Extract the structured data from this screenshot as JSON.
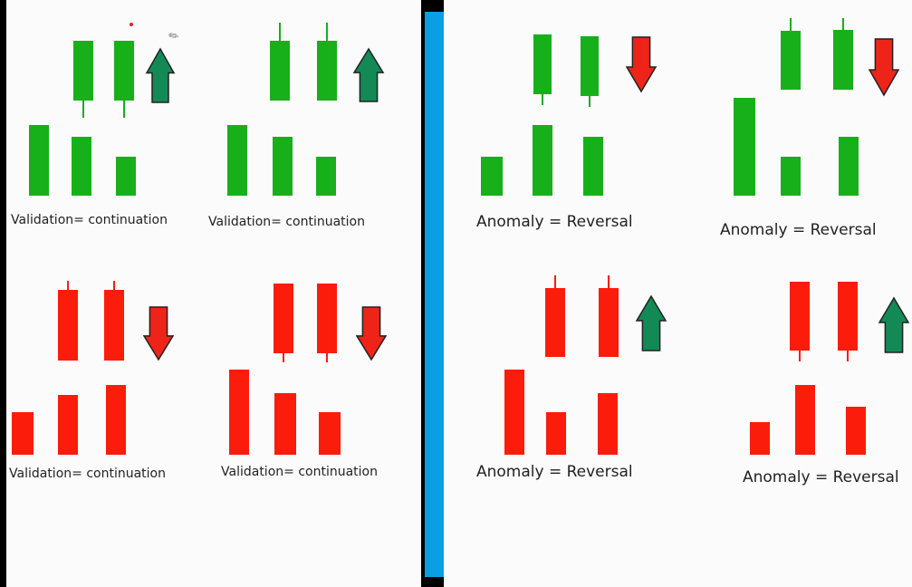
{
  "colors": {
    "green_candle": "#17b01b",
    "red_candle": "#fc1c0b",
    "green_arrow": "#138a55",
    "red_arrow": "#ee2418",
    "divider": "#0a9ee3",
    "arrow_outline": "#222222"
  },
  "diagrams": [
    {
      "caption": "Validation= continuation",
      "candle_color": "green",
      "arrow": {
        "direction": "up",
        "color": "green"
      },
      "candles": [
        {
          "label": "base-1",
          "wick": false
        },
        {
          "label": "base-2",
          "wick": false
        },
        {
          "label": "base-3",
          "wick": false
        },
        {
          "label": "signal-1",
          "wick": true
        },
        {
          "label": "signal-2",
          "wick": true
        }
      ]
    },
    {
      "caption": "Validation= continuation",
      "candle_color": "green",
      "arrow": {
        "direction": "up",
        "color": "green"
      },
      "candles": [
        {
          "label": "base-1",
          "wick": false
        },
        {
          "label": "base-2",
          "wick": false
        },
        {
          "label": "base-3",
          "wick": false
        },
        {
          "label": "signal-1",
          "wick": true
        },
        {
          "label": "signal-2",
          "wick": true
        }
      ]
    },
    {
      "caption": "Validation= continuation",
      "candle_color": "red",
      "arrow": {
        "direction": "down",
        "color": "red"
      },
      "candles": [
        {
          "label": "base-1",
          "wick": false
        },
        {
          "label": "base-2",
          "wick": false
        },
        {
          "label": "base-3",
          "wick": false
        },
        {
          "label": "signal-1",
          "wick": true
        },
        {
          "label": "signal-2",
          "wick": true
        }
      ]
    },
    {
      "caption": "Validation= continuation",
      "candle_color": "red",
      "arrow": {
        "direction": "down",
        "color": "red"
      },
      "candles": [
        {
          "label": "base-1",
          "wick": false
        },
        {
          "label": "base-2",
          "wick": false
        },
        {
          "label": "base-3",
          "wick": false
        },
        {
          "label": "signal-1",
          "wick": true
        },
        {
          "label": "signal-2",
          "wick": true
        }
      ]
    },
    {
      "caption": "Anomaly = Reversal",
      "candle_color": "green",
      "arrow": {
        "direction": "down",
        "color": "red"
      },
      "candles": [
        {
          "label": "base-1",
          "wick": false
        },
        {
          "label": "base-2",
          "wick": false
        },
        {
          "label": "base-3",
          "wick": false
        },
        {
          "label": "signal-1",
          "wick": true
        },
        {
          "label": "signal-2",
          "wick": true
        }
      ]
    },
    {
      "caption": "Anomaly = Reversal",
      "candle_color": "green",
      "arrow": {
        "direction": "down",
        "color": "red"
      },
      "candles": [
        {
          "label": "base-1",
          "wick": false
        },
        {
          "label": "base-2",
          "wick": false
        },
        {
          "label": "base-3",
          "wick": false
        },
        {
          "label": "signal-1",
          "wick": true
        },
        {
          "label": "signal-2",
          "wick": true
        }
      ]
    },
    {
      "caption": "Anomaly = Reversal",
      "candle_color": "red",
      "arrow": {
        "direction": "up",
        "color": "green"
      },
      "candles": [
        {
          "label": "base-1",
          "wick": false
        },
        {
          "label": "base-2",
          "wick": false
        },
        {
          "label": "base-3",
          "wick": false
        },
        {
          "label": "signal-1",
          "wick": true
        },
        {
          "label": "signal-2",
          "wick": true
        }
      ]
    },
    {
      "caption": "Anomaly = Reversal",
      "candle_color": "red",
      "arrow": {
        "direction": "up",
        "color": "green"
      },
      "candles": [
        {
          "label": "base-1",
          "wick": false
        },
        {
          "label": "base-2",
          "wick": false
        },
        {
          "label": "base-3",
          "wick": false
        },
        {
          "label": "signal-1",
          "wick": true
        },
        {
          "label": "signal-2",
          "wick": true
        }
      ]
    }
  ]
}
